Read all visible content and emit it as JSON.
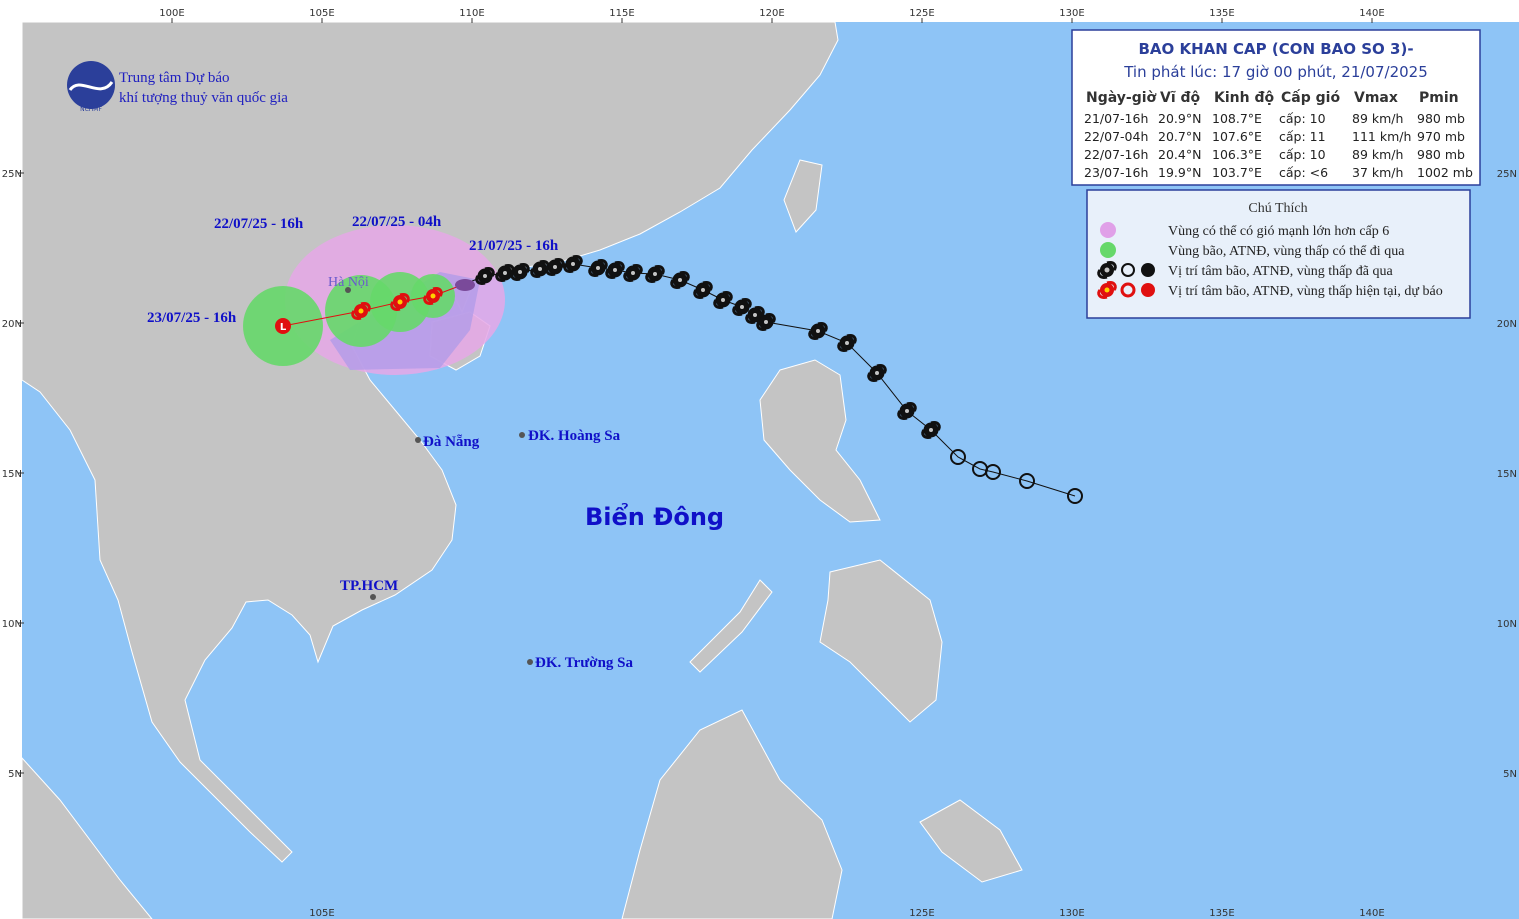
{
  "header": {
    "org_line1": "Trung tâm Dự báo",
    "org_line2": "khí tượng thuỷ văn quốc gia",
    "logo_text": "NCHMF"
  },
  "axes": {
    "lon_labels": [
      "100E",
      "105E",
      "110E",
      "115E",
      "120E",
      "125E",
      "130E",
      "135E",
      "140E"
    ],
    "bottom_lon_labels": [
      "105E",
      "125E",
      "130E",
      "135E",
      "140E"
    ],
    "lat_labels": [
      "25N",
      "20N",
      "15N",
      "10N",
      "5N"
    ]
  },
  "bulletin": {
    "title": "BAO KHAN CAP (CON BAO SO 3)-",
    "issued": "Tin phát lúc: 17 giờ 00 phút, 21/07/2025",
    "columns": [
      "Ngày-giờ",
      "Vĩ độ",
      "Kinh độ",
      "Cấp gió",
      "Vmax",
      "Pmin"
    ],
    "rows": [
      [
        "21/07-16h",
        "20.9°N",
        "108.7°E",
        "cấp: 10",
        "89 km/h",
        "980 mb"
      ],
      [
        "22/07-04h",
        "20.7°N",
        "107.6°E",
        "cấp: 11",
        "111 km/h",
        "970 mb"
      ],
      [
        "22/07-16h",
        "20.4°N",
        "106.3°E",
        "cấp: 10",
        "89 km/h",
        "980 mb"
      ],
      [
        "23/07-16h",
        "19.9°N",
        "103.7°E",
        "cấp: <6",
        "37 km/h",
        "1002 mb"
      ]
    ]
  },
  "legend": {
    "title": "Chú Thích",
    "items": [
      "Vùng có thể có gió mạnh lớn hơn cấp 6",
      "Vùng bão, ATNĐ, vùng thấp có thể đi qua",
      "Vị trí tâm bão, ATNĐ, vùng thấp đã qua",
      "Vị trí tâm bão, ATNĐ, vùng thấp hiện tại, dự báo"
    ]
  },
  "map_labels": {
    "t1": "21/07/25 - 16h",
    "t2": "22/07/25 - 04h",
    "t3": "22/07/25 - 16h",
    "t4": "23/07/25 - 16h",
    "hanoi": "Hà Nội",
    "danang": "Đà Nẵng",
    "hoangsa": "ĐK. Hoàng Sa",
    "sea": "Biển Đông",
    "hcm": "TP.HCM",
    "truongsa": "ĐK. Trường Sa"
  }
}
